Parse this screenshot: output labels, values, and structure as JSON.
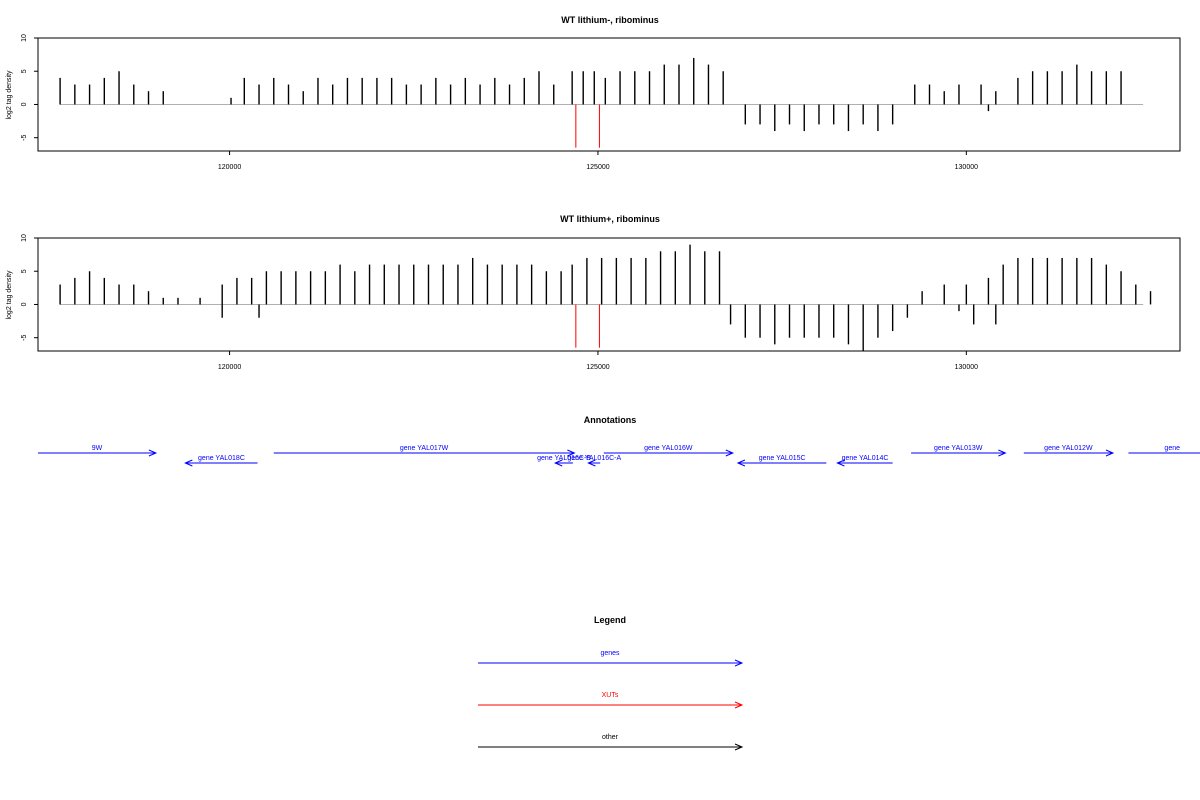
{
  "chart_data": [
    {
      "type": "bar",
      "title": "WT lithium-, ribominus",
      "ylabel": "log2 tag density",
      "xlabel": "",
      "xlim": [
        117400,
        132900
      ],
      "ylim": [
        -7,
        10
      ],
      "y_ticks": [
        -5,
        0,
        5,
        10
      ],
      "x_ticks": [
        120000,
        125000,
        130000
      ],
      "x_tick_labels": [
        "120000",
        "125000",
        "130000"
      ],
      "grid": false,
      "baseline": 0,
      "series": [
        {
          "strand": "plus",
          "color": "#000000",
          "x": [
            117700,
            117900,
            118100,
            118300,
            118500,
            118700,
            118900,
            119100,
            120020,
            120200,
            120400,
            120600,
            120800,
            121000,
            121200,
            121400,
            121600,
            121800,
            122000,
            122200,
            122400,
            122600,
            122800,
            123000,
            123200,
            123400,
            123600,
            123800,
            124000,
            124200,
            124400,
            124650,
            124800,
            124950,
            125100,
            125300,
            125500,
            125700,
            125900,
            126100,
            126300,
            126500,
            126700,
            129300,
            129500,
            129700,
            129900,
            130200,
            130400,
            130700,
            130900,
            131100,
            131300,
            131500,
            131700,
            131900,
            132100
          ],
          "values": [
            4,
            3,
            3,
            4,
            5,
            3,
            2,
            2,
            1,
            4,
            3,
            4,
            3,
            2,
            4,
            3,
            4,
            4,
            4,
            4,
            3,
            3,
            4,
            3,
            4,
            3,
            4,
            3,
            4,
            5,
            3,
            5,
            5,
            5,
            4,
            5,
            5,
            5,
            6,
            6,
            7,
            6,
            5,
            3,
            3,
            2,
            3,
            3,
            2,
            4,
            5,
            5,
            5,
            6,
            5,
            5,
            5
          ]
        },
        {
          "strand": "minus",
          "color": "#000000",
          "x": [
            127000,
            127200,
            127400,
            127600,
            127800,
            128000,
            128200,
            128400,
            128600,
            128800,
            129000,
            130300
          ],
          "values": [
            -3,
            -3,
            -4,
            -3,
            -4,
            -3,
            -3,
            -4,
            -3,
            -4,
            -3,
            -1
          ]
        },
        {
          "name": "XUTs",
          "color": "#ff0000",
          "x": [
            124700,
            125020
          ],
          "values": [
            -6.5,
            -6.5
          ]
        }
      ]
    },
    {
      "type": "bar",
      "title": "WT lithium+, ribominus",
      "ylabel": "log2 tag density",
      "xlabel": "",
      "xlim": [
        117400,
        132900
      ],
      "ylim": [
        -7,
        10
      ],
      "y_ticks": [
        -5,
        0,
        5,
        10
      ],
      "x_ticks": [
        120000,
        125000,
        130000
      ],
      "x_tick_labels": [
        "120000",
        "125000",
        "130000"
      ],
      "grid": false,
      "baseline": 0,
      "series": [
        {
          "strand": "plus",
          "color": "#000000",
          "x": [
            117700,
            117900,
            118100,
            118300,
            118500,
            118700,
            118900,
            119100,
            119300,
            119600,
            119900,
            120100,
            120300,
            120500,
            120700,
            120900,
            121100,
            121300,
            121500,
            121700,
            121900,
            122100,
            122300,
            122500,
            122700,
            122900,
            123100,
            123300,
            123500,
            123700,
            123900,
            124100,
            124300,
            124500,
            124650,
            124850,
            125050,
            125250,
            125450,
            125650,
            125850,
            126050,
            126250,
            126450,
            126650,
            129400,
            129700,
            130000,
            130300,
            130500,
            130700,
            130900,
            131100,
            131300,
            131500,
            131700,
            131900,
            132100,
            132300,
            132500
          ],
          "values": [
            3,
            4,
            5,
            4,
            3,
            3,
            2,
            1,
            1,
            1,
            3,
            4,
            4,
            5,
            5,
            5,
            5,
            5,
            6,
            5,
            6,
            6,
            6,
            6,
            6,
            6,
            6,
            7,
            6,
            6,
            6,
            6,
            5,
            5,
            6,
            7,
            7,
            7,
            7,
            7,
            8,
            8,
            9,
            8,
            8,
            2,
            3,
            3,
            4,
            6,
            7,
            7,
            7,
            7,
            7,
            7,
            6,
            5,
            3,
            2
          ]
        },
        {
          "strand": "minus",
          "color": "#000000",
          "x": [
            119900,
            120400,
            126800,
            127000,
            127200,
            127400,
            127600,
            127800,
            128000,
            128200,
            128400,
            128600,
            128800,
            129000,
            129200,
            129900,
            130100,
            130400
          ],
          "values": [
            -2,
            -2,
            -3,
            -5,
            -5,
            -6,
            -5,
            -5,
            -5,
            -5,
            -6,
            -7,
            -5,
            -4,
            -2,
            -1,
            -3,
            -3
          ]
        },
        {
          "name": "XUTs",
          "color": "#ff0000",
          "x": [
            124700,
            125020
          ],
          "values": [
            -6.5,
            -6.5
          ]
        }
      ]
    }
  ],
  "annotations": {
    "title": "Annotations",
    "color": "#0000ff",
    "genes": [
      {
        "label": "9W",
        "start": 117400,
        "end": 119000,
        "strand": "+"
      },
      {
        "label": "gene YAL018C",
        "start": 119400,
        "end": 120380,
        "strand": "-"
      },
      {
        "label": "gene YAL017W",
        "start": 120600,
        "end": 124680,
        "strand": "+"
      },
      {
        "label": "gene YAL016C-B",
        "start": 124420,
        "end": 124660,
        "strand": "-"
      },
      {
        "label": "gene YAL016C-A",
        "start": 124870,
        "end": 125030,
        "strand": "-"
      },
      {
        "label": "gene YAL016W",
        "start": 125080,
        "end": 126830,
        "strand": "+"
      },
      {
        "label": "gene YAL015C",
        "start": 126900,
        "end": 128100,
        "strand": "-"
      },
      {
        "label": "gene YAL014C",
        "start": 128250,
        "end": 129000,
        "strand": "-"
      },
      {
        "label": "gene YAL013W",
        "start": 129250,
        "end": 130530,
        "strand": "+"
      },
      {
        "label": "gene YAL012W",
        "start": 130780,
        "end": 131990,
        "strand": "+"
      },
      {
        "label": "gene",
        "start": 132200,
        "end": 133200,
        "strand": "+"
      }
    ]
  },
  "legend": {
    "title": "Legend",
    "items": [
      {
        "label": "genes",
        "color": "#0000ff"
      },
      {
        "label": "XUTs",
        "color": "#ff0000"
      },
      {
        "label": "other",
        "color": "#000000"
      }
    ]
  }
}
